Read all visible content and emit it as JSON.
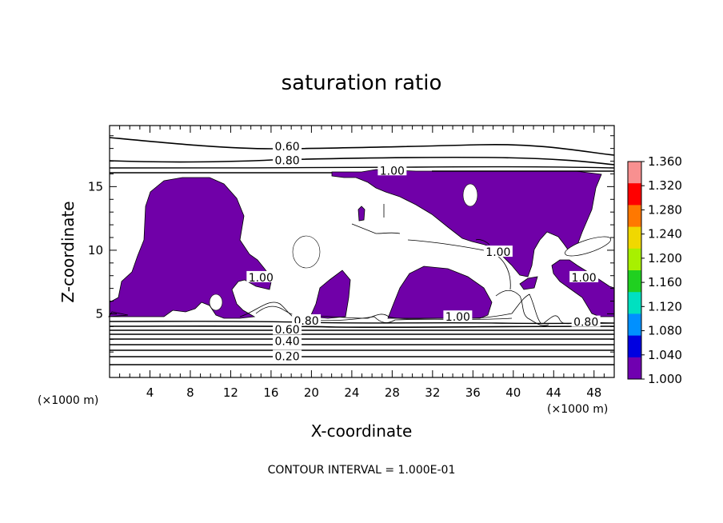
{
  "chart_data": {
    "type": "heatmap",
    "title": "saturation ratio",
    "xlabel": "X-coordinate",
    "ylabel": "Z-coordinate",
    "x_unit": "(×1000 m)",
    "z_unit": "(×1000 m)",
    "xlim": [
      0,
      50
    ],
    "ylim": [
      0,
      19.8
    ],
    "x_ticks": [
      4,
      8,
      12,
      16,
      20,
      24,
      28,
      32,
      36,
      40,
      44,
      48
    ],
    "y_ticks": [
      5,
      10,
      15
    ],
    "footnote": "CONTOUR INTERVAL = 1.000E-01",
    "colorbar": {
      "min": 1.0,
      "max": 1.36,
      "labels": [
        "1.360",
        "1.320",
        "1.280",
        "1.240",
        "1.200",
        "1.160",
        "1.120",
        "1.080",
        "1.040",
        "1.000"
      ],
      "colors": [
        "#f89090",
        "#ff0000",
        "#ff7800",
        "#f0d800",
        "#a8f000",
        "#20d020",
        "#00e0c0",
        "#0090ff",
        "#0000e0",
        "#7000b0"
      ]
    },
    "fill_color": "#7000a8",
    "contour_labels": [
      {
        "text": "0.60",
        "x": 17.6,
        "z": 18.1
      },
      {
        "text": "0.80",
        "x": 17.6,
        "z": 17.0
      },
      {
        "text": "1.00",
        "x": 28.0,
        "z": 16.2
      },
      {
        "text": "1.00",
        "x": 15.0,
        "z": 7.8
      },
      {
        "text": "0.80",
        "x": 19.5,
        "z": 4.4
      },
      {
        "text": "0.60",
        "x": 17.6,
        "z": 3.7
      },
      {
        "text": "0.40",
        "x": 17.6,
        "z": 2.8
      },
      {
        "text": "0.20",
        "x": 17.6,
        "z": 1.6
      },
      {
        "text": "1.00",
        "x": 34.5,
        "z": 4.7
      },
      {
        "text": "1.00",
        "x": 38.5,
        "z": 9.8
      },
      {
        "text": "1.00",
        "x": 47.0,
        "z": 7.8
      },
      {
        "text": "0.80",
        "x": 47.2,
        "z": 4.3
      }
    ]
  }
}
